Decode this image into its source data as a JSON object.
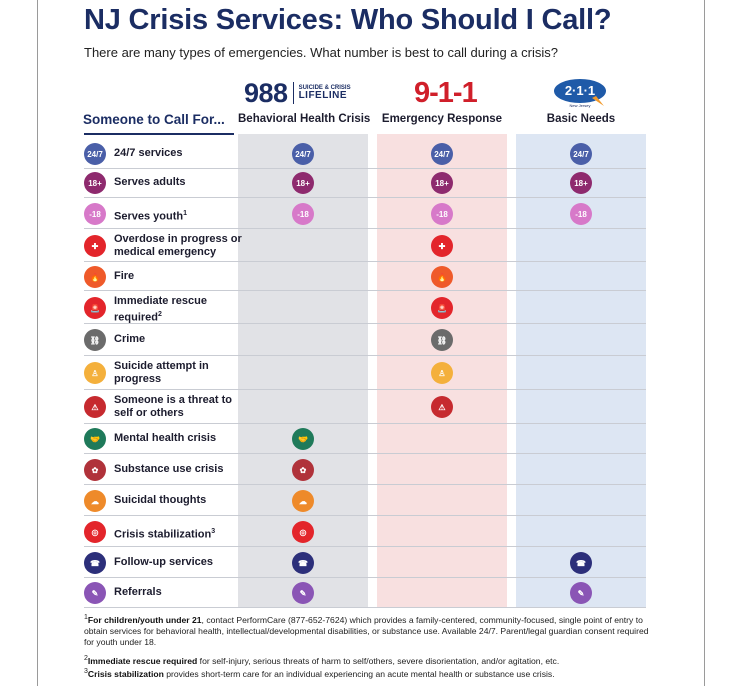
{
  "title": "NJ Crisis Services: Who Should I Call?",
  "subtitle": "There are many types of emergencies. What number is best to call during a crisis?",
  "row_header": "Someone to Call For...",
  "columns": [
    {
      "key": "988",
      "logo_number": "988",
      "logo_small": "SUICIDE & CRISIS",
      "logo_large": "LIFELINE",
      "label": "Behavioral Health Crisis"
    },
    {
      "key": "911",
      "logo_number": "9-1-1",
      "label": "Emergency Response"
    },
    {
      "key": "211",
      "logo_number": "2·1·1",
      "logo_small": "New Jersey",
      "label": "Basic Needs"
    }
  ],
  "rows": [
    {
      "label": "24/7 services",
      "sup": "",
      "icon": "clock-24-7-icon",
      "icon_text": "24/7",
      "color": "#4a5fa8",
      "c988": true,
      "c911": true,
      "c211": true
    },
    {
      "label": "Serves adults",
      "sup": "",
      "icon": "adult-18-plus-icon",
      "icon_text": "18+",
      "color": "#8e2a6e",
      "c988": true,
      "c911": true,
      "c211": true
    },
    {
      "label": "Serves youth",
      "sup": "1",
      "icon": "youth-under-18-icon",
      "icon_text": "-18",
      "color": "#d779c9",
      "c988": true,
      "c911": true,
      "c211": true
    },
    {
      "label": "Overdose in progress or medical emergency",
      "sup": "",
      "icon": "medical-cross-icon",
      "icon_text": "✚",
      "color": "#e3252b",
      "c988": false,
      "c911": true,
      "c211": false
    },
    {
      "label": "Fire",
      "sup": "",
      "icon": "fire-icon",
      "icon_text": "🔥",
      "color": "#ef5a2a",
      "c988": false,
      "c911": true,
      "c211": false
    },
    {
      "label": "Immediate rescue required",
      "sup": "2",
      "icon": "siren-icon",
      "icon_text": "🚨",
      "color": "#e3252b",
      "c988": false,
      "c911": true,
      "c211": false
    },
    {
      "label": "Crime",
      "sup": "",
      "icon": "handcuffs-icon",
      "icon_text": "⛓",
      "color": "#6b6b6b",
      "c988": false,
      "c911": true,
      "c211": false
    },
    {
      "label": "Suicide attempt in progress",
      "sup": "",
      "icon": "person-alert-icon",
      "icon_text": "♙",
      "color": "#f4b03c",
      "c988": false,
      "c911": true,
      "c211": false
    },
    {
      "label": "Someone is a threat to self or others",
      "sup": "",
      "icon": "warning-triangle-icon",
      "icon_text": "⚠",
      "color": "#c62a2f",
      "c988": false,
      "c911": true,
      "c211": false
    },
    {
      "label": "Mental health crisis",
      "sup": "",
      "icon": "helping-hands-icon",
      "icon_text": "🤝",
      "color": "#1f7a5a",
      "c988": true,
      "c911": false,
      "c211": false
    },
    {
      "label": "Substance use crisis",
      "sup": "",
      "icon": "substance-icon",
      "icon_text": "✿",
      "color": "#b0323a",
      "c988": true,
      "c911": false,
      "c211": false
    },
    {
      "label": "Suicidal thoughts",
      "sup": "",
      "icon": "thought-bubble-icon",
      "icon_text": "☁",
      "color": "#ee8a2a",
      "c988": true,
      "c911": false,
      "c211": false
    },
    {
      "label": "Crisis stabilization",
      "sup": "3",
      "icon": "lifebuoy-icon",
      "icon_text": "◎",
      "color": "#e3252b",
      "c988": true,
      "c911": false,
      "c211": false
    },
    {
      "label": "Follow-up services",
      "sup": "",
      "icon": "follow-up-icon",
      "icon_text": "☎",
      "color": "#2c2f7a",
      "c988": true,
      "c911": false,
      "c211": true
    },
    {
      "label": "Referrals",
      "sup": "",
      "icon": "referral-document-icon",
      "icon_text": "✎",
      "color": "#8a55b5",
      "c988": true,
      "c911": false,
      "c211": true
    }
  ],
  "footnotes": [
    {
      "mark": "1",
      "bold": "For children/youth under 21",
      "text": ", contact PerformCare (877-652-7624) which provides a family-centered, community-focused, single point of entry to obtain services for behavioral health, intellectual/developmental disabilities, or substance use. Available 24/7. Parent/legal guardian consent required for youth under 18."
    },
    {
      "mark": "2",
      "bold": "Immediate rescue required",
      "text": " for self-injury, serious threats of harm to self/others, severe disorientation, and/or agitation, etc."
    },
    {
      "mark": "3",
      "bold": "Crisis stabilization",
      "text": " provides short-term care for an individual experiencing an acute mental health or substance use crisis."
    }
  ]
}
